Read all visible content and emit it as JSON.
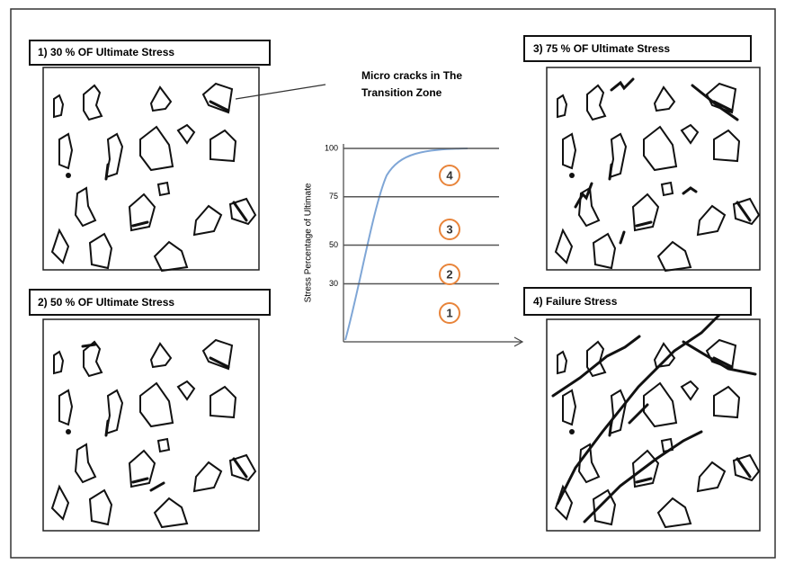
{
  "panels": [
    {
      "label": "1)   30 % OF Ultimate Stress"
    },
    {
      "label": "2)   50 % OF Ultimate Stress"
    },
    {
      "label": "3)   75 % OF Ultimate Stress"
    },
    {
      "label": "4)  Failure Stress"
    }
  ],
  "annotation": {
    "lines": [
      "Micro cracks in The",
      "Transition Zone"
    ]
  },
  "graph": {
    "y_label": "Stress Percentage of Ultimate",
    "yticks": [
      30,
      50,
      75,
      100
    ],
    "zones": [
      "1",
      "2",
      "3",
      "4"
    ]
  }
}
